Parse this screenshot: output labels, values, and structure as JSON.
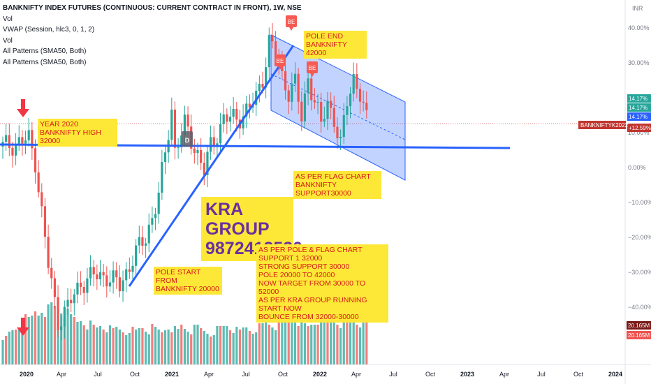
{
  "legend": {
    "title": "BANKNIFTY INDEX FUTURES (CONTINUOUS: CURRENT CONTRACT IN FRONT), 1W, NSE",
    "lines": [
      "Vol",
      "VWAP (Session, hlc3, 0, 1, 2)",
      "Vol",
      "All Patterns (SMA50, Both)",
      "All Patterns (SMA50, Both)"
    ]
  },
  "chart_data": {
    "type": "candlestick",
    "currency": "INR",
    "x_ticks": [
      "2020",
      "Apr",
      "Jul",
      "Oct",
      "2021",
      "Apr",
      "Jul",
      "Oct",
      "2022",
      "Apr",
      "Jul",
      "Oct",
      "2023",
      "Apr",
      "Jul",
      "Oct",
      "2024"
    ],
    "y_ticks": [
      "40.00%",
      "30.00%",
      "20.00%",
      "10.00%",
      "0.00%",
      "−10.00%",
      "−20.00%",
      "−30.00%",
      "−40.00%"
    ],
    "y_range_pct": [
      -50,
      47
    ],
    "price_path_pct": [
      [
        0,
        6
      ],
      [
        8,
        8
      ],
      [
        10,
        2
      ],
      [
        14,
        -28
      ],
      [
        17,
        -44
      ],
      [
        20,
        -40
      ],
      [
        24,
        -33
      ],
      [
        28,
        -31
      ],
      [
        32,
        -31
      ],
      [
        36,
        -34
      ],
      [
        40,
        -26
      ],
      [
        44,
        -20
      ],
      [
        48,
        -8
      ],
      [
        50,
        4
      ],
      [
        52,
        17
      ],
      [
        53,
        5
      ],
      [
        56,
        12
      ],
      [
        60,
        4
      ],
      [
        62,
        -1
      ],
      [
        64,
        6
      ],
      [
        68,
        14
      ],
      [
        72,
        14
      ],
      [
        76,
        17
      ],
      [
        78,
        20
      ],
      [
        80,
        26
      ],
      [
        82,
        36
      ],
      [
        84,
        33
      ],
      [
        86,
        26
      ],
      [
        88,
        22
      ],
      [
        90,
        24
      ],
      [
        92,
        14
      ],
      [
        94,
        26
      ],
      [
        96,
        19
      ],
      [
        98,
        12
      ],
      [
        100,
        19
      ],
      [
        102,
        14
      ],
      [
        104,
        6
      ],
      [
        106,
        19
      ],
      [
        108,
        26
      ],
      [
        110,
        21
      ],
      [
        112,
        13
      ]
    ],
    "volume_relative": [
      0.35,
      0.3,
      0.38,
      0.42,
      0.45,
      0.5,
      0.55,
      0.6,
      0.58,
      0.62,
      0.7,
      0.66,
      0.72,
      0.68,
      0.75,
      0.8,
      0.77,
      0.74,
      0.7,
      0.65,
      0.68,
      0.62,
      0.6,
      0.55,
      0.58,
      0.54,
      0.5,
      0.52,
      0.48,
      0.46,
      0.5,
      0.47,
      0.45,
      0.44,
      0.42,
      0.46,
      0.44,
      0.42,
      0.4,
      0.45,
      0.43,
      0.41,
      0.45,
      0.47,
      0.44,
      0.42,
      0.46,
      0.44,
      0.42,
      0.4,
      0.45,
      0.48,
      0.46,
      0.44,
      0.42,
      0.5,
      0.46,
      0.44,
      0.42,
      0.45,
      0.47,
      0.44,
      0.42,
      0.4,
      0.38,
      0.42,
      0.44,
      0.46,
      0.48,
      0.5,
      0.46,
      0.44,
      0.42,
      0.4,
      0.45,
      0.47,
      0.44,
      0.42,
      0.46,
      0.48,
      0.5,
      0.55,
      0.52,
      0.5,
      0.48,
      0.5,
      0.52,
      0.54,
      0.56,
      0.58,
      0.6,
      0.55,
      0.52,
      0.5,
      0.48,
      0.52,
      0.54,
      0.56,
      0.58,
      0.6,
      0.62,
      0.65,
      0.58,
      0.55,
      0.52,
      0.6,
      0.62,
      0.58,
      0.55,
      0.54,
      0.52,
      0.5,
      0.5
    ],
    "price_badges": [
      {
        "label": "14.17%",
        "color": "#26a69a"
      },
      {
        "label": "14.17%",
        "color": "#26a69a"
      },
      {
        "label": "14.17%",
        "color": "#2962ff"
      },
      {
        "label": "+12.59%",
        "color": "#c1352f"
      }
    ],
    "symbol_badge": "BANKNIFTYK2022",
    "volume_badges": [
      "20.165M",
      "20.165M"
    ],
    "pattern_markers": [
      "BE",
      "BE",
      "BE",
      "D"
    ]
  },
  "annotations": {
    "pole_end": "POLE END\nBANKNIFTY 42000",
    "year_2020": "YEAR 2020\nBANKNIFTY HIGH 32000",
    "flag_support": "AS PER FLAG CHART\nBANKNIFTY SUPPORT30000",
    "kra_group": "KRA GROUP\n9872412530",
    "pole_start": "POLE START FROM\nBANKNIFTY 20000",
    "summary": "AS PER POLE & FLAG CHART\nSUPPORT 1 32000\nSTRONG SUPPORT 30000\nPOLE 20000 TO 42000\nNOW TARGET FROM 30000 TO 52000\nAS PER KRA GROUP RUNNING START NOW\nBOUNCE FROM 32000-30000"
  },
  "colors": {
    "up": "#26a69a",
    "down": "#ef5350",
    "line": "#2962ff",
    "channel": "#2962ff",
    "note_bg": "#fde837",
    "arrow": "#f23645"
  }
}
